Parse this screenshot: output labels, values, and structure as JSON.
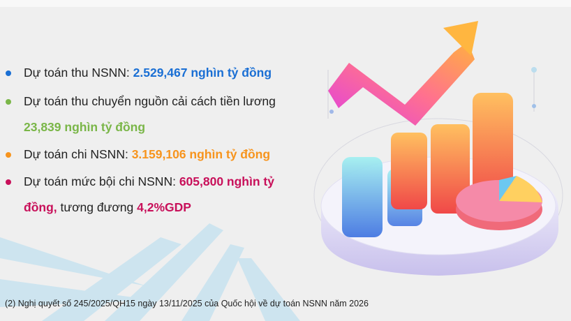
{
  "colors": {
    "blue": "#1a6fd4",
    "green": "#7ab648",
    "orange": "#f7941d",
    "crimson": "#c8105a"
  },
  "items": [
    {
      "label": "Dự toán thu NSNN: ",
      "value": "2.529,467  nghìn tỷ đồng"
    },
    {
      "label": "Dự toán thu chuyển nguồn cải cách tiền lương",
      "value": "23,839 nghìn tỷ đồng"
    },
    {
      "label": "Dự toán chi NSNN: ",
      "value": "3.159,106 nghìn tỷ đồng"
    },
    {
      "label": "Dự toán mức bội chi NSNN: ",
      "value": "605,800 nghìn tỷ",
      "value2": "đồng,",
      "mid": " tương đương ",
      "value3": "4,2%GDP"
    }
  ],
  "footnote": "(2) Nghị quyết số 245/2025/QH15 ngày 13/11/2025 của Quốc hội về dự toán NSNN năm 2026",
  "illustration": {
    "icon": "3d-bar-chart-with-rising-arrow-and-pie-chart"
  }
}
